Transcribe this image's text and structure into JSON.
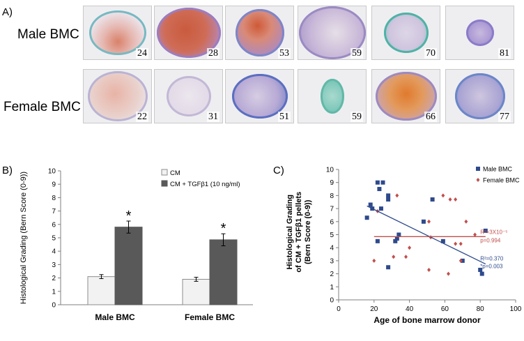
{
  "panel_a": {
    "label": "A)",
    "rows": [
      {
        "label": "Male BMC",
        "tiles": [
          {
            "number": "24",
            "stain": "mixed-red"
          },
          {
            "number": "28",
            "stain": "red"
          },
          {
            "number": "53",
            "stain": "red-purple"
          },
          {
            "number": "59",
            "stain": "purple"
          },
          {
            "number": "70",
            "stain": "blue"
          },
          {
            "number": "81",
            "stain": "small-purple"
          }
        ]
      },
      {
        "label": "Female BMC",
        "tiles": [
          {
            "number": "22",
            "stain": "pink"
          },
          {
            "number": "31",
            "stain": "pale"
          },
          {
            "number": "51",
            "stain": "purple-blue"
          },
          {
            "number": "59",
            "stain": "small-blue"
          },
          {
            "number": "66",
            "stain": "orange"
          },
          {
            "number": "77",
            "stain": "blue-purple"
          }
        ]
      }
    ]
  },
  "panel_b": {
    "label": "B)"
  },
  "panel_c": {
    "label": "C)"
  },
  "chart_data": [
    {
      "type": "bar",
      "ylabel": "Histological Grading (Bern Score (0-9))",
      "ylim": [
        0,
        10
      ],
      "yticks": [
        "0",
        "1",
        "2",
        "3",
        "4",
        "5",
        "6",
        "7",
        "8",
        "9",
        "10"
      ],
      "categories": [
        "Male BMC",
        "Female BMC"
      ],
      "series": [
        {
          "name": "CM",
          "color": "#f2f2f2",
          "values": [
            2.1,
            1.9
          ],
          "errors": [
            0.15,
            0.15
          ]
        },
        {
          "name": "CM + TGFβ1 (10 ng/ml)",
          "color": "#595959",
          "values": [
            5.8,
            4.85
          ],
          "errors": [
            0.45,
            0.45
          ]
        }
      ],
      "significance": [
        "*",
        "*"
      ],
      "legend": "top-right"
    },
    {
      "type": "scatter",
      "xlabel": "Age of bone marrow donor",
      "ylabel": [
        "Histological Grading",
        "of CM + TGFβ1 pellets",
        "(Bern Score (0-9))"
      ],
      "xlim": [
        0,
        100
      ],
      "ylim": [
        0,
        10
      ],
      "xticks": [
        "0",
        "20",
        "40",
        "60",
        "80",
        "100"
      ],
      "yticks": [
        "0",
        "1",
        "2",
        "3",
        "4",
        "5",
        "6",
        "7",
        "8",
        "9",
        "10"
      ],
      "series": [
        {
          "name": "Male BMC",
          "color": "#2e4a8c",
          "marker": "square",
          "points": [
            [
              16,
              6.3
            ],
            [
              18,
              7.3
            ],
            [
              19,
              7.0
            ],
            [
              22,
              4.5
            ],
            [
              22,
              9.0
            ],
            [
              23,
              8.5
            ],
            [
              24,
              7.0
            ],
            [
              25,
              9.0
            ],
            [
              28,
              8.0
            ],
            [
              28,
              7.7
            ],
            [
              28,
              2.5
            ],
            [
              32,
              4.5
            ],
            [
              33,
              4.7
            ],
            [
              34,
              5.0
            ],
            [
              48,
              6.0
            ],
            [
              53,
              7.7
            ],
            [
              59,
              4.5
            ],
            [
              70,
              3.0
            ],
            [
              80,
              2.3
            ],
            [
              81,
              2.0
            ],
            [
              83,
              5.3
            ]
          ]
        },
        {
          "name": "Female BMC",
          "color": "#c0504d",
          "marker": "diamond",
          "points": [
            [
              20,
              3.0
            ],
            [
              22,
              6.8
            ],
            [
              31,
              3.3
            ],
            [
              33,
              8.0
            ],
            [
              38,
              3.3
            ],
            [
              40,
              4.0
            ],
            [
              51,
              6.0
            ],
            [
              51,
              2.3
            ],
            [
              52,
              4.8
            ],
            [
              59,
              8.0
            ],
            [
              62,
              2.0
            ],
            [
              63,
              7.7
            ],
            [
              66,
              4.3
            ],
            [
              66,
              7.7
            ],
            [
              69,
              4.3
            ],
            [
              69,
              3.0
            ],
            [
              72,
              6.0
            ],
            [
              77,
              5.0
            ]
          ]
        }
      ],
      "trendlines": [
        {
          "series": "Male BMC",
          "color": "#2e4a8c",
          "x": [
            16,
            83
          ],
          "y": [
            7.2,
            2.75
          ],
          "annotation": [
            "R²=0.370",
            "*p=0.003"
          ]
        },
        {
          "series": "Female BMC",
          "color": "#c0504d",
          "x": [
            20,
            83
          ],
          "y": [
            4.85,
            4.85
          ],
          "annotation": [
            "R²=3X10⁻⁵",
            "p=0.994"
          ]
        }
      ],
      "legend": "top-right"
    }
  ]
}
